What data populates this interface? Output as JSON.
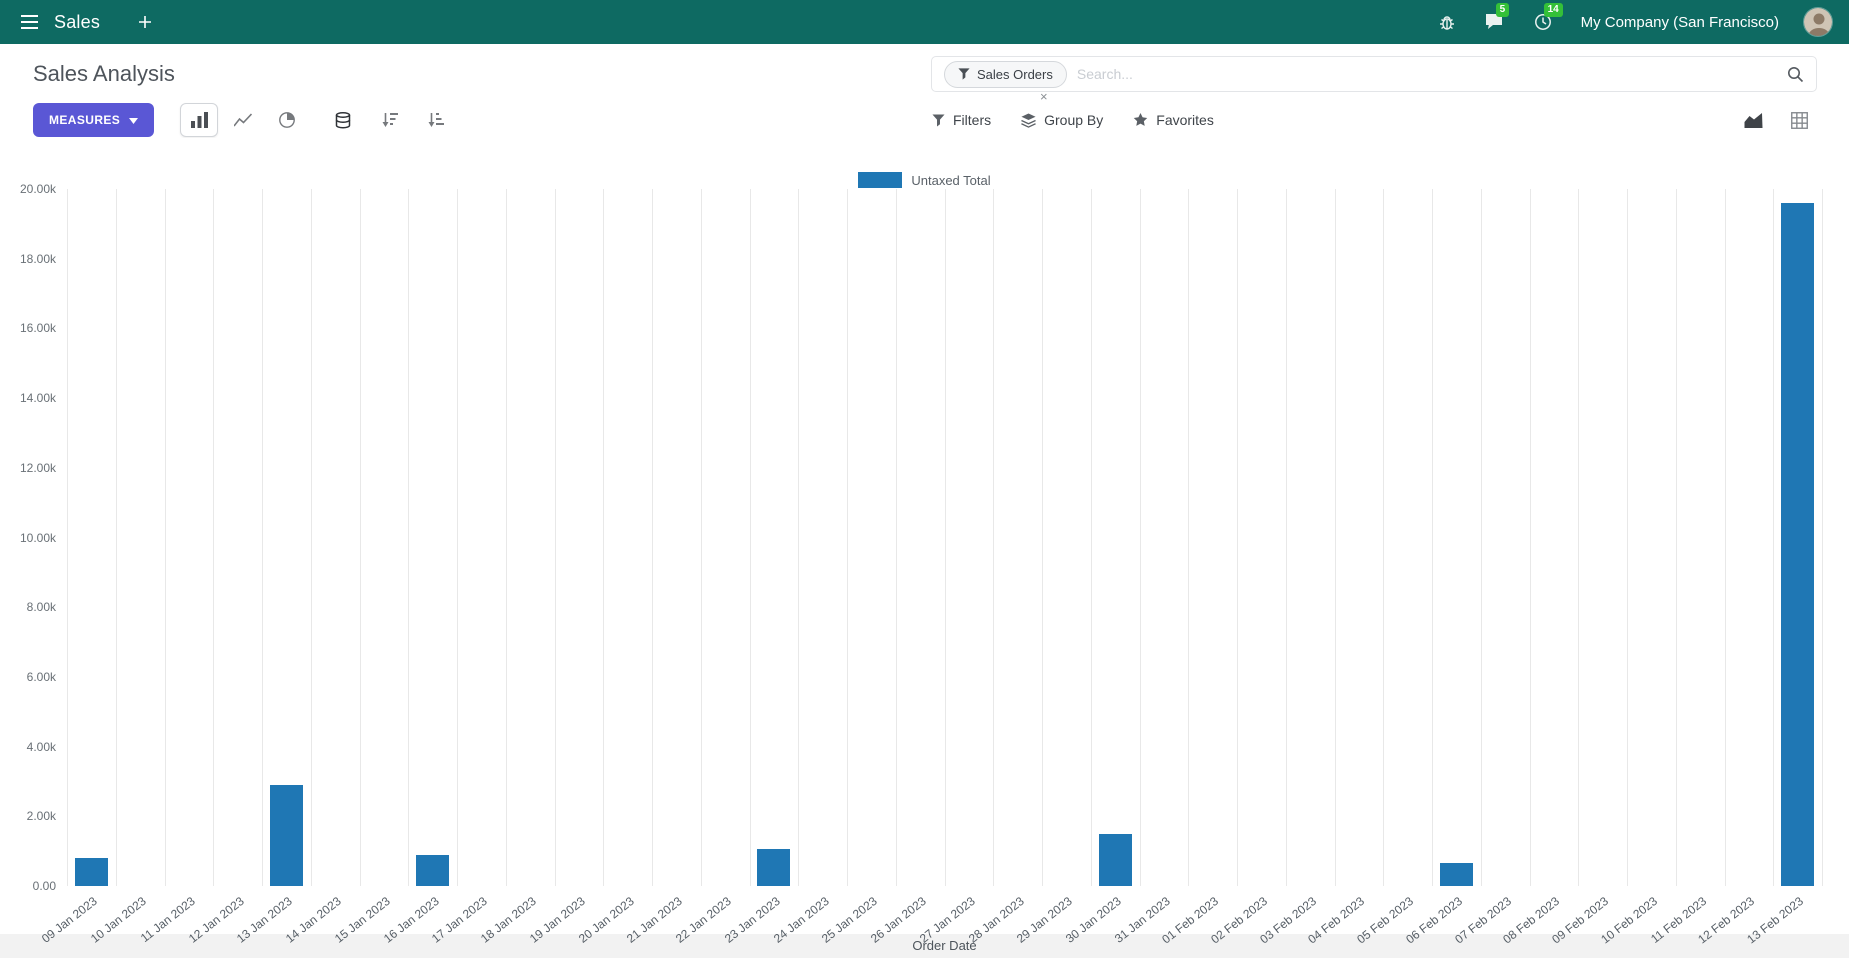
{
  "topbar": {
    "app_name": "Sales",
    "company": "My Company (San Francisco)",
    "message_badge": "5",
    "activity_badge": "14"
  },
  "control_panel": {
    "title": "Sales Analysis",
    "measures_label": "MEASURES",
    "search": {
      "facet_label": "Sales Orders",
      "facet_remove": "×",
      "placeholder": "Search..."
    },
    "filters_label": "Filters",
    "group_by_label": "Group By",
    "favorites_label": "Favorites"
  },
  "colors": {
    "topbar_bg": "#0e6a62",
    "primary_button": "#5a57d5",
    "badge": "#34c038",
    "bar": "#1f77b4"
  },
  "chart_data": {
    "type": "bar",
    "title": "",
    "xlabel": "Order Date",
    "ylabel": "",
    "ylim": [
      0,
      20000
    ],
    "ytick_step": 2000,
    "ytick_labels": [
      "0.00",
      "2.00k",
      "4.00k",
      "6.00k",
      "8.00k",
      "10.00k",
      "12.00k",
      "14.00k",
      "16.00k",
      "18.00k",
      "20.00k"
    ],
    "grid": "vertical",
    "legend_position": "top-center",
    "legend": [
      {
        "label": "Untaxed Total",
        "color": "#1f77b4"
      }
    ],
    "categories": [
      "09 Jan 2023",
      "10 Jan 2023",
      "11 Jan 2023",
      "12 Jan 2023",
      "13 Jan 2023",
      "14 Jan 2023",
      "15 Jan 2023",
      "16 Jan 2023",
      "17 Jan 2023",
      "18 Jan 2023",
      "19 Jan 2023",
      "20 Jan 2023",
      "21 Jan 2023",
      "22 Jan 2023",
      "23 Jan 2023",
      "24 Jan 2023",
      "25 Jan 2023",
      "26 Jan 2023",
      "27 Jan 2023",
      "28 Jan 2023",
      "29 Jan 2023",
      "30 Jan 2023",
      "31 Jan 2023",
      "01 Feb 2023",
      "02 Feb 2023",
      "03 Feb 2023",
      "04 Feb 2023",
      "05 Feb 2023",
      "06 Feb 2023",
      "07 Feb 2023",
      "08 Feb 2023",
      "09 Feb 2023",
      "10 Feb 2023",
      "11 Feb 2023",
      "12 Feb 2023",
      "13 Feb 2023"
    ],
    "series": [
      {
        "name": "Untaxed Total",
        "values": [
          800,
          0,
          0,
          0,
          2900,
          0,
          0,
          900,
          0,
          0,
          0,
          0,
          0,
          0,
          1050,
          0,
          0,
          0,
          0,
          0,
          0,
          1500,
          0,
          0,
          0,
          0,
          0,
          0,
          650,
          0,
          0,
          0,
          0,
          0,
          0,
          19600
        ]
      }
    ]
  }
}
